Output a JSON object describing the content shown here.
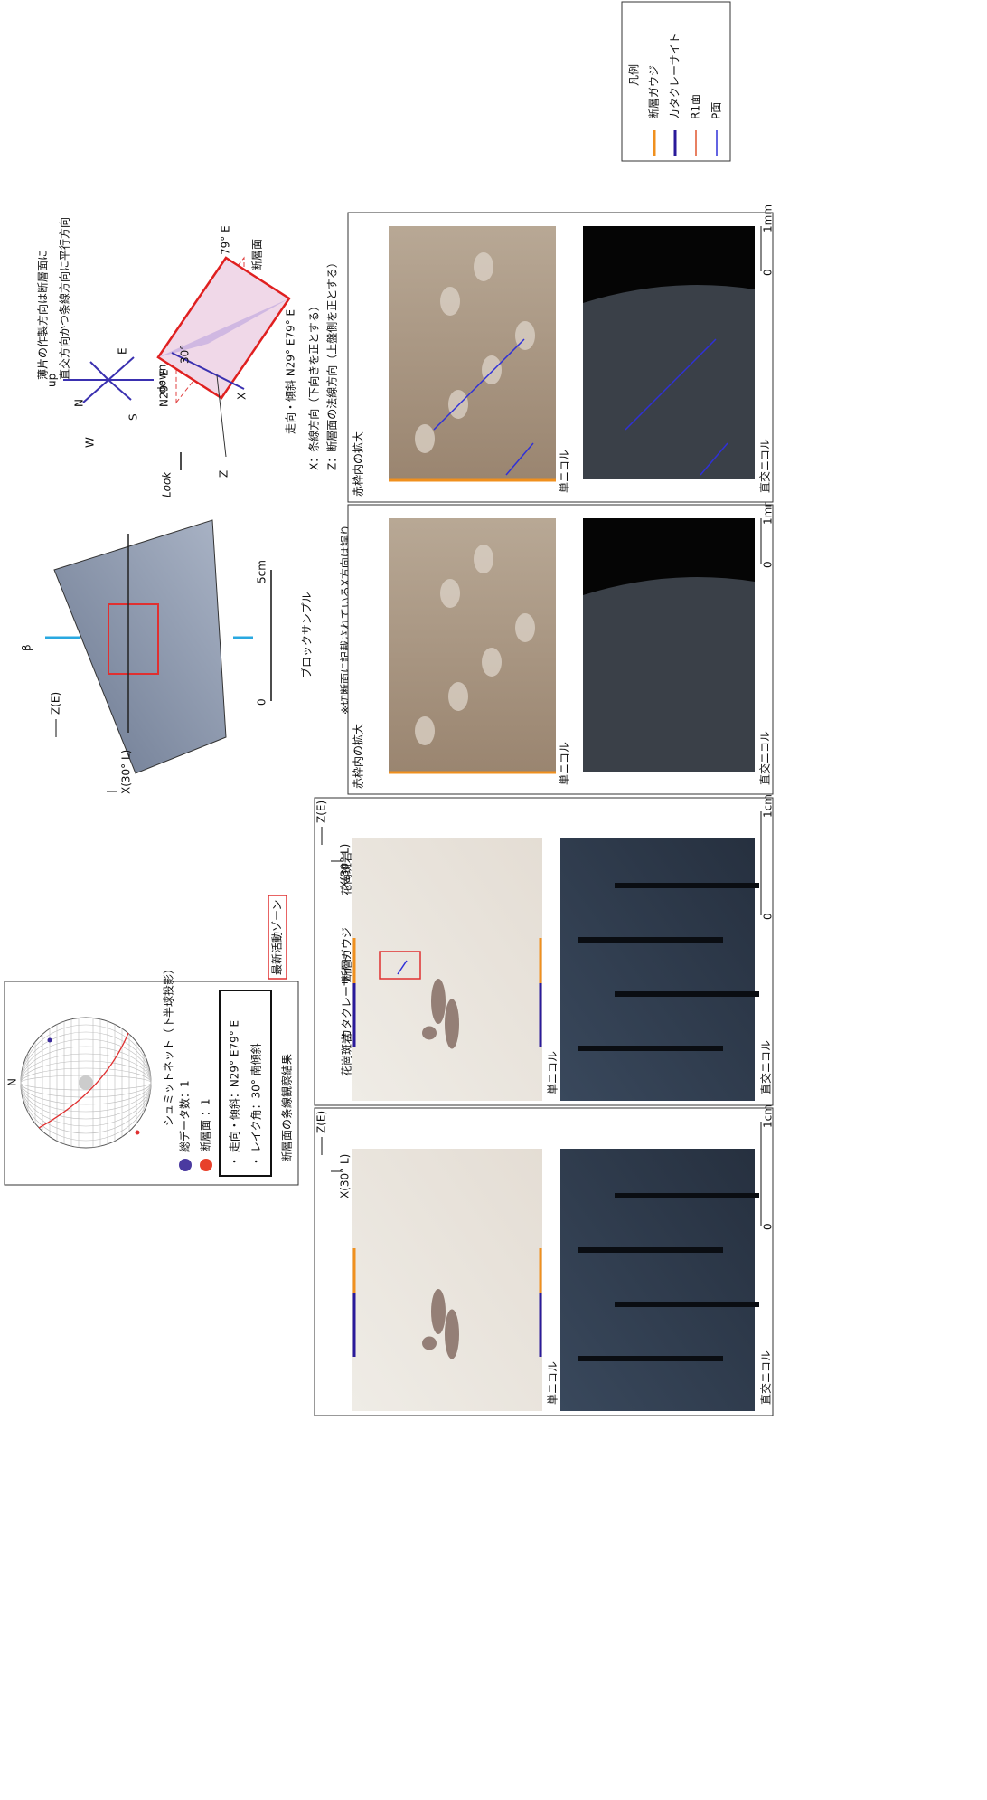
{
  "header": {
    "line1": "薄片の作製方向は断層面に",
    "line2": "直交方向かつ条線方向に平行方向"
  },
  "legend": {
    "title": "凡例",
    "items": [
      {
        "label": "断層ガウジ",
        "color": "#f0901e"
      },
      {
        "label": "カタクレーサイト",
        "color": "#2a1a9a"
      },
      {
        "label": "R1面",
        "color": "#e0552e"
      },
      {
        "label": "P面",
        "color": "#2f30d8"
      }
    ]
  },
  "stereonet": {
    "north": "N",
    "caption": "シュミットネット（下半球投影）",
    "total": "総データ数：1",
    "fault": "断層面 ：1",
    "strike_dip": "・ 走向・傾斜：N29° E79° E",
    "rake": "・ レイク角：30° 南傾斜",
    "title": "断層面の条線観察結果"
  },
  "thin_sections": [
    {
      "z_axis": "Z(E)",
      "x_axis": "X(30° L)",
      "plain": "単ニコル",
      "crossed": "直交ニコル",
      "scale_zero": "0",
      "scale_max": "1cm"
    },
    {
      "z_axis": "Z(E)",
      "x_axis": "X(30° L)",
      "plain": "単ニコル",
      "crossed": "直交ニコル",
      "scale_zero": "0",
      "scale_max": "1cm",
      "zone": "最新活動ゾーン",
      "units": [
        "花崗斑岩",
        "カタクレーサイト",
        "断層ガウジ",
        "花崗斑岩"
      ]
    }
  ],
  "block": {
    "beta": "β",
    "z_axis": "Z(E)",
    "x_axis": "X(30° L)",
    "caption": "ブロックサンプル",
    "note": "※切断面に記載されているX方向は誤り",
    "scale_zero": "0",
    "scale_max": "5cm"
  },
  "enlargements": [
    {
      "heading": "赤枠内の拡大",
      "plain": "単ニコル",
      "crossed": "直交ニコル",
      "scale_zero": "0",
      "scale_max": "1mm"
    },
    {
      "heading": "赤枠内の拡大",
      "plain": "単ニコル",
      "crossed": "直交ニコル",
      "scale_zero": "0",
      "scale_max": "1mm"
    }
  ],
  "diagram": {
    "up": "up",
    "down": "down",
    "n": "N",
    "e": "E",
    "s": "S",
    "w": "W",
    "look": "Look",
    "z": "Z",
    "x": "X",
    "strike_label": "N29° E",
    "rake_label": "30°",
    "dip_label": "79° E",
    "plane_label": "断層面",
    "strike_dip": "走向・傾斜  N29° E79° E",
    "x_note": "X：条線方向（下向きを正とする）",
    "z_note": "Z：断層面の法線方向（上盤側を正とする）"
  }
}
